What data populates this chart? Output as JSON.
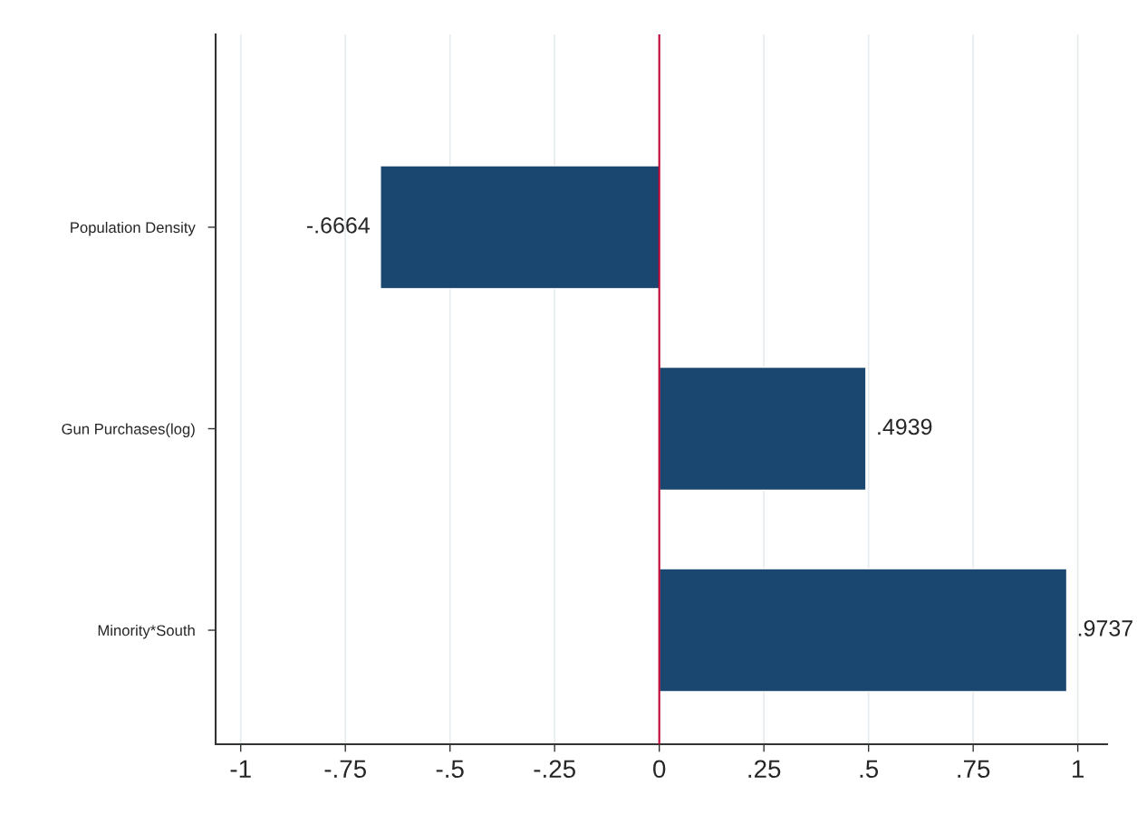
{
  "chart_data": {
    "type": "bar",
    "orientation": "horizontal",
    "categories": [
      "Population Density",
      "Gun Purchases(log)",
      "Minority*South"
    ],
    "values": [
      -0.6664,
      0.4939,
      0.9737
    ],
    "value_labels": [
      "-.6664",
      ".4939",
      ".9737"
    ],
    "color": "#1a476f",
    "xlim": [
      -1.06,
      1.07
    ],
    "xticks": [
      {
        "value": -1,
        "label": "-1"
      },
      {
        "value": -0.75,
        "label": "-.75"
      },
      {
        "value": -0.5,
        "label": "-.5"
      },
      {
        "value": -0.25,
        "label": "-.25"
      },
      0,
      {
        "value": 0.25,
        "label": ".25"
      },
      {
        "value": 0.5,
        "label": ".5"
      },
      {
        "value": 0.75,
        "label": ".75"
      },
      1
    ],
    "grid": "x",
    "ref_lines": [
      {
        "axis": "x",
        "value": 0,
        "color": "#c10534"
      }
    ]
  }
}
